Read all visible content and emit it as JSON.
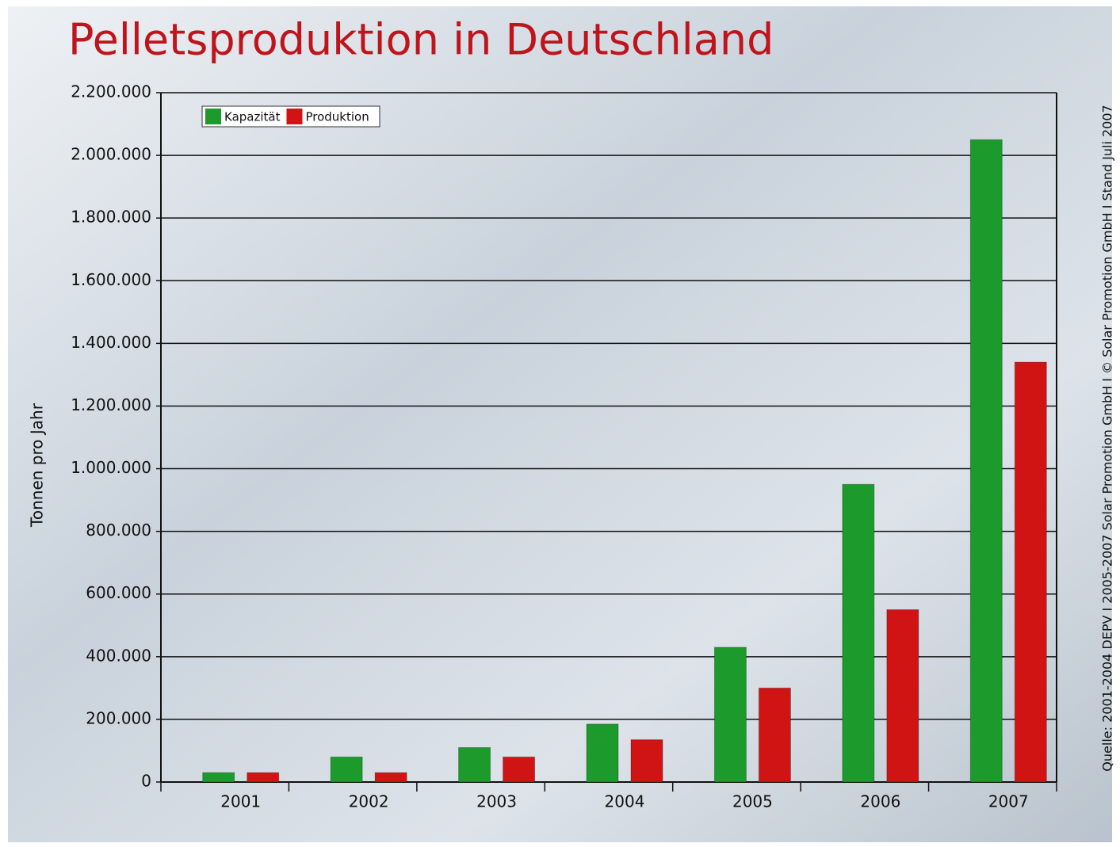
{
  "chart_data": {
    "type": "bar",
    "title": "Pelletsproduktion in Deutschland",
    "y_label": "Tonnen pro Jahr",
    "source": "Quelle: 2001-2004 DEPV I 2005-2007 Solar Promotion GmbH I © Solar Promotion GmbH I Stand Juli 2007",
    "categories": [
      "2001",
      "2002",
      "2003",
      "2004",
      "2005",
      "2006",
      "2007"
    ],
    "series": [
      {
        "name": "Kapazität",
        "color": "#1c9a2c",
        "values": [
          30000,
          80000,
          110000,
          185000,
          430000,
          950000,
          2050000
        ]
      },
      {
        "name": "Produktion",
        "color": "#d01414",
        "values": [
          30000,
          30000,
          80000,
          135000,
          300000,
          550000,
          1340000
        ]
      }
    ],
    "ylim": [
      0,
      2200000
    ],
    "yticks": [
      0,
      {
        "value": 200000,
        "label": "200.000"
      },
      {
        "value": 400000,
        "label": "400.000"
      },
      {
        "value": 600000,
        "label": "600.000"
      },
      {
        "value": 800000,
        "label": "800.000"
      },
      {
        "value": 1000000,
        "label": "1.000.000"
      },
      {
        "value": 1200000,
        "label": "1.200.000"
      },
      {
        "value": 1400000,
        "label": "1.400.000"
      },
      {
        "value": 1600000,
        "label": "1.600.000"
      },
      {
        "value": 1800000,
        "label": "1.800.000"
      },
      {
        "value": 2000000,
        "label": "2.000.000"
      },
      {
        "value": 2200000,
        "label": "2.200.000"
      }
    ],
    "grid": true,
    "legend": "top-left"
  }
}
